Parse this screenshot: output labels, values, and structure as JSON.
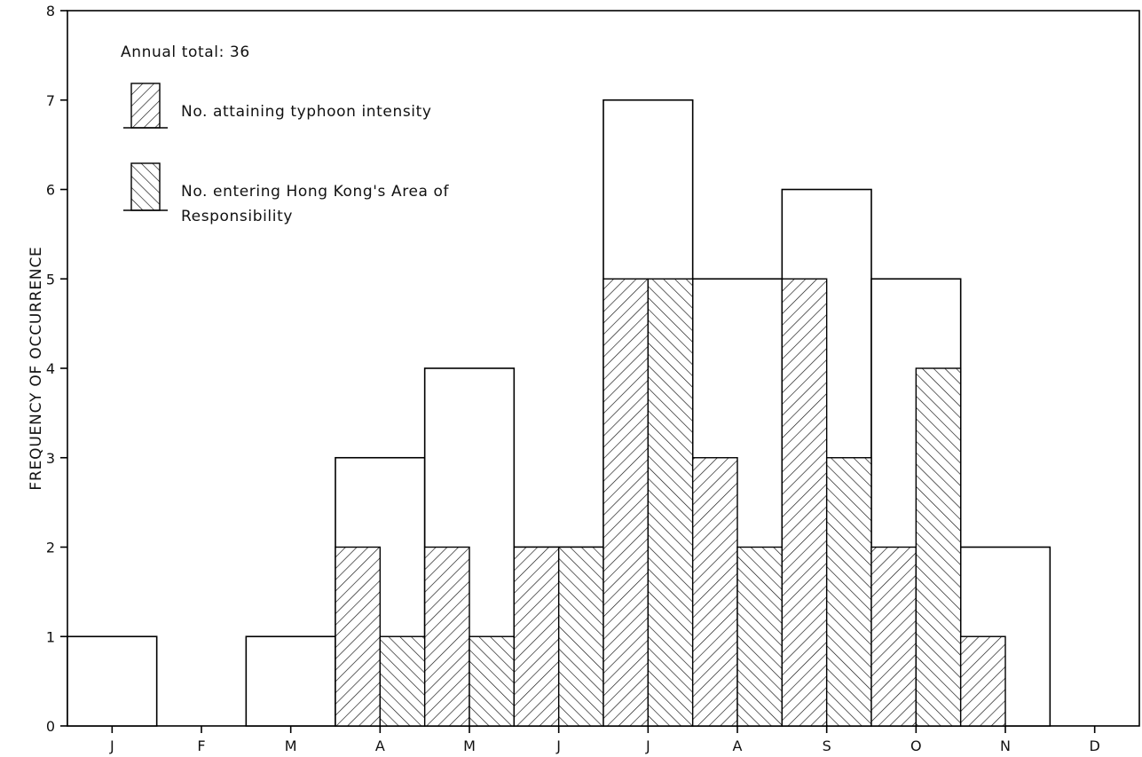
{
  "chart_data": {
    "type": "bar",
    "title": "",
    "xlabel": "",
    "ylabel": "FREQUENCY OF OCCURRENCE",
    "ylim": [
      0,
      8
    ],
    "yticks": [
      "0",
      "1",
      "2",
      "3",
      "4",
      "5",
      "6",
      "7",
      "8"
    ],
    "categories": [
      "J",
      "F",
      "M",
      "A",
      "M",
      "J",
      "J",
      "A",
      "S",
      "O",
      "N",
      "D"
    ],
    "series": [
      {
        "values": [
          1,
          0,
          1,
          3,
          4,
          2,
          7,
          5,
          6,
          5,
          2,
          0
        ]
      },
      {
        "name": "No. attaining typhoon intensity",
        "values": [
          0,
          0,
          0,
          2,
          2,
          2,
          5,
          3,
          5,
          2,
          1,
          0
        ]
      },
      {
        "name": "No. entering Hong Kong's Area of Responsibility",
        "values": [
          0,
          0,
          0,
          1,
          1,
          2,
          5,
          2,
          3,
          4,
          0,
          0
        ]
      }
    ],
    "annotation": "Annual total: 36",
    "legend": {
      "placement": "top-left",
      "typhoon_label": "No. attaining typhoon intensity",
      "entering_label_line1": "No. entering Hong Kong's Area of",
      "entering_label_line2": "Responsibility"
    },
    "grid": false,
    "colors": {
      "stroke": "#000000",
      "fill": "#ffffff",
      "hatch": "#111111"
    }
  }
}
